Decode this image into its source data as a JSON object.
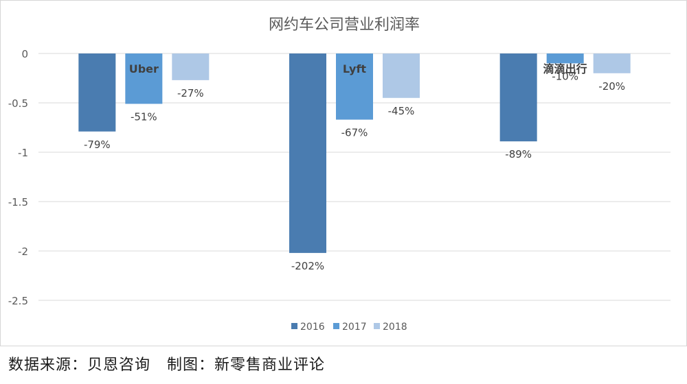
{
  "chart_data": {
    "type": "bar",
    "title": "网约车公司营业利润率",
    "categories": [
      "Uber",
      "Lyft",
      "滴滴出行"
    ],
    "series": [
      {
        "name": "2016",
        "values": [
          -0.79,
          -2.02,
          -0.89
        ],
        "labels": [
          "-79%",
          "-202%",
          "-89%"
        ],
        "color": "#4a7cb0"
      },
      {
        "name": "2017",
        "values": [
          -0.51,
          -0.67,
          -0.1
        ],
        "labels": [
          "-51%",
          "-67%",
          "-10%"
        ],
        "color": "#5b9bd5"
      },
      {
        "name": "2018",
        "values": [
          -0.27,
          -0.45,
          -0.2
        ],
        "labels": [
          "-27%",
          "-45%",
          "-20%"
        ],
        "color": "#aec8e6"
      }
    ],
    "yticks": [
      0,
      -0.5,
      -1,
      -1.5,
      -2,
      -2.5
    ],
    "ytick_labels": [
      "0",
      "-0.5",
      "-1",
      "-1.5",
      "-2",
      "-2.5"
    ],
    "ylim": [
      -2.5,
      0
    ],
    "grid": true,
    "legend_position": "bottom"
  },
  "footer": {
    "source_text": "数据来源：贝恩咨询   制图：新零售商业评论"
  }
}
